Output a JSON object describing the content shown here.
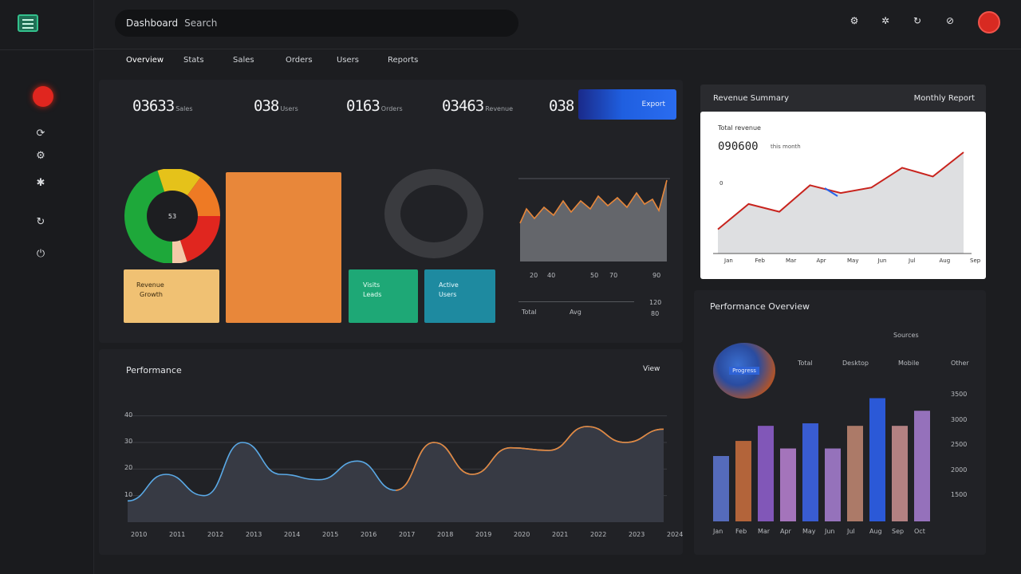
{
  "app": {
    "search": {
      "prefix": "Dashboard",
      "placeholder": "Search"
    },
    "tabs": [
      "Overview",
      "Stats",
      "Sales",
      "Orders",
      "Users",
      "Reports"
    ],
    "kpis": [
      {
        "value": "03633",
        "label": "Sales"
      },
      {
        "value": "038",
        "label": "Users"
      },
      {
        "value": "0163",
        "label": "Orders"
      },
      {
        "value": "03463",
        "label": "Revenue"
      },
      {
        "value": "038",
        "label": ""
      }
    ],
    "cta_label": "Export",
    "cards": {
      "amber": [
        "Revenue",
        "Growth"
      ],
      "green": [
        "Visits",
        "Leads"
      ],
      "teal": [
        "Active",
        "Users"
      ]
    },
    "donut_center": "53",
    "sparkline": {
      "x_ticks": [
        "20",
        "40",
        "50",
        "70",
        "90"
      ],
      "legend": [
        "Total",
        "Avg"
      ],
      "values_right": [
        "120",
        "80"
      ]
    },
    "white_card": {
      "header_left": "Revenue Summary",
      "header_right": "Monthly Report",
      "subtitle": "Total revenue",
      "amount": "090600",
      "amount_note": "this month",
      "y_marker": "0",
      "x_ticks": [
        "Jan",
        "Feb",
        "Mar",
        "Apr",
        "May",
        "Jun",
        "Jul",
        "Aug",
        "Sep"
      ]
    },
    "area_chart": {
      "title": "Performance",
      "action": "View",
      "y_ticks": [
        "40",
        "30",
        "20",
        "10"
      ],
      "x_ticks": [
        "2010",
        "2011",
        "2012",
        "2013",
        "2014",
        "2015",
        "2016",
        "2017",
        "2018",
        "2019",
        "2020",
        "2021",
        "2022",
        "2023",
        "2024"
      ]
    },
    "bar_panel": {
      "title": "Performance Overview",
      "caption": "Sources",
      "legend_badge": "Progress",
      "legend": [
        "Total",
        "Desktop",
        "Mobile",
        "Other"
      ],
      "y_ticks": [
        "3500",
        "3000",
        "2500",
        "2000",
        "1500"
      ],
      "x_ticks": [
        "Jan",
        "Feb",
        "Mar",
        "Apr",
        "May",
        "Jun",
        "Jul",
        "Aug",
        "Sep",
        "Oct"
      ]
    },
    "colors": {
      "accent": "#2563eb",
      "orange": "#e8873a",
      "green": "#1ea876",
      "teal": "#1e8aa0",
      "red": "#e0261f"
    }
  },
  "chart_data": [
    {
      "type": "line",
      "title": "",
      "x": [
        "Jan",
        "Feb",
        "Mar",
        "Apr",
        "May",
        "Jun",
        "Jul",
        "Aug",
        "Sep"
      ],
      "series": [
        {
          "values": [
            22,
            45,
            38,
            62,
            55,
            60,
            78,
            70,
            92
          ]
        }
      ],
      "ylim": [
        0,
        100
      ]
    },
    {
      "type": "area",
      "x": [
        "2010",
        "2011",
        "2012",
        "2013",
        "2014",
        "2015",
        "2016",
        "2017",
        "2018",
        "2019",
        "2020",
        "2021",
        "2022",
        "2023",
        "2024"
      ],
      "series": [
        {
          "values": [
            8,
            18,
            10,
            30,
            18,
            16,
            23,
            12,
            30,
            18,
            28,
            27,
            36,
            30,
            35
          ]
        }
      ],
      "ylim": [
        0,
        45
      ]
    },
    {
      "type": "bar",
      "categories": [
        "Jan",
        "Feb",
        "Mar",
        "Apr",
        "May",
        "Jun",
        "Jul",
        "Aug",
        "Sep",
        "Oct"
      ],
      "values": [
        2300,
        2600,
        2900,
        2450,
        2950,
        2450,
        2900,
        3450,
        2900,
        3200
      ],
      "ylim": [
        1000,
        3600
      ]
    },
    {
      "type": "pie",
      "categories": [
        "Green",
        "Yellow",
        "Orange",
        "Red",
        "Peach"
      ],
      "values": [
        45,
        15,
        15,
        20,
        5
      ]
    }
  ]
}
